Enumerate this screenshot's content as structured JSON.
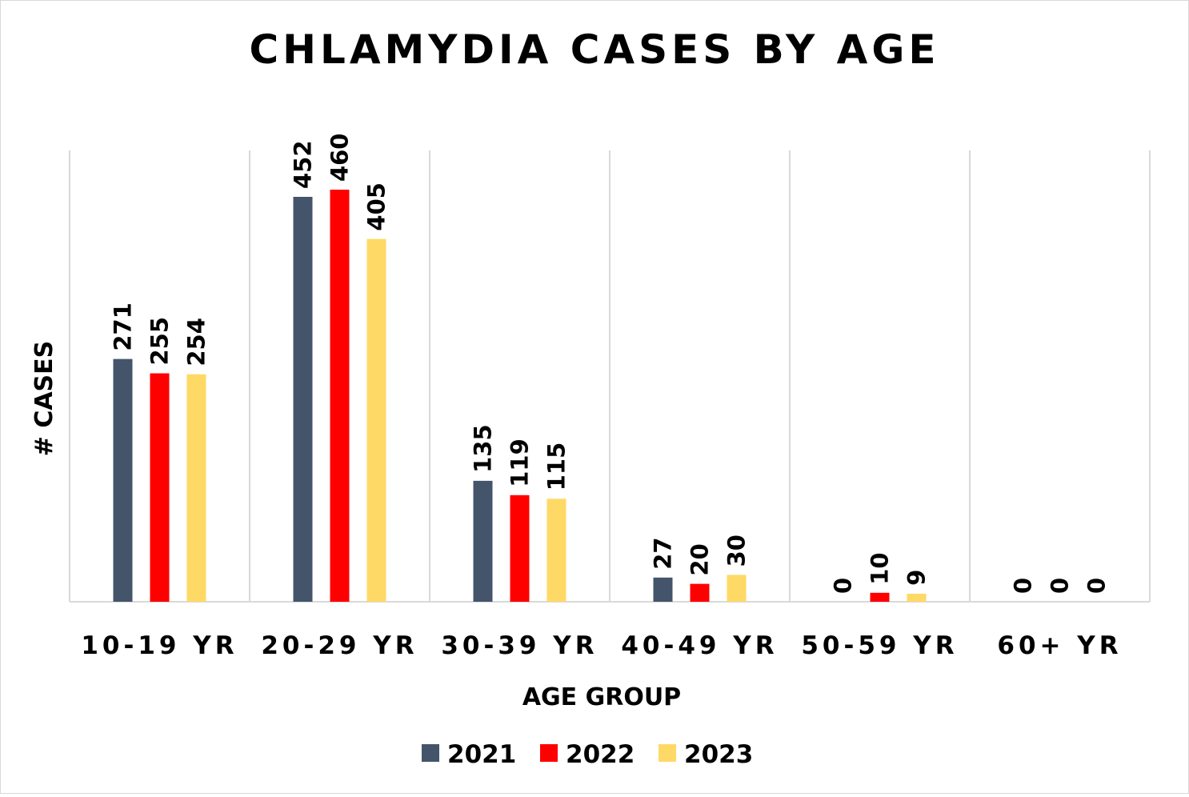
{
  "chart_data": {
    "type": "bar",
    "title": "CHLAMYDIA CASES BY AGE",
    "xlabel": "AGE GROUP",
    "ylabel": "# CASES",
    "categories": [
      "10-19 YR",
      "20-29 YR",
      "30-39 YR",
      "40-49 YR",
      "50-59 YR",
      "60+ YR"
    ],
    "series": [
      {
        "name": "2021",
        "color": "#44546a",
        "values": [
          271,
          452,
          135,
          27,
          0,
          0
        ]
      },
      {
        "name": "2022",
        "color": "#ff0000",
        "values": [
          255,
          460,
          119,
          20,
          10,
          0
        ]
      },
      {
        "name": "2023",
        "color": "#ffd966",
        "values": [
          254,
          405,
          115,
          30,
          9,
          0
        ]
      }
    ],
    "ylim": [
      0,
      500
    ],
    "grid": "vertical category separators",
    "legend": "bottom"
  }
}
